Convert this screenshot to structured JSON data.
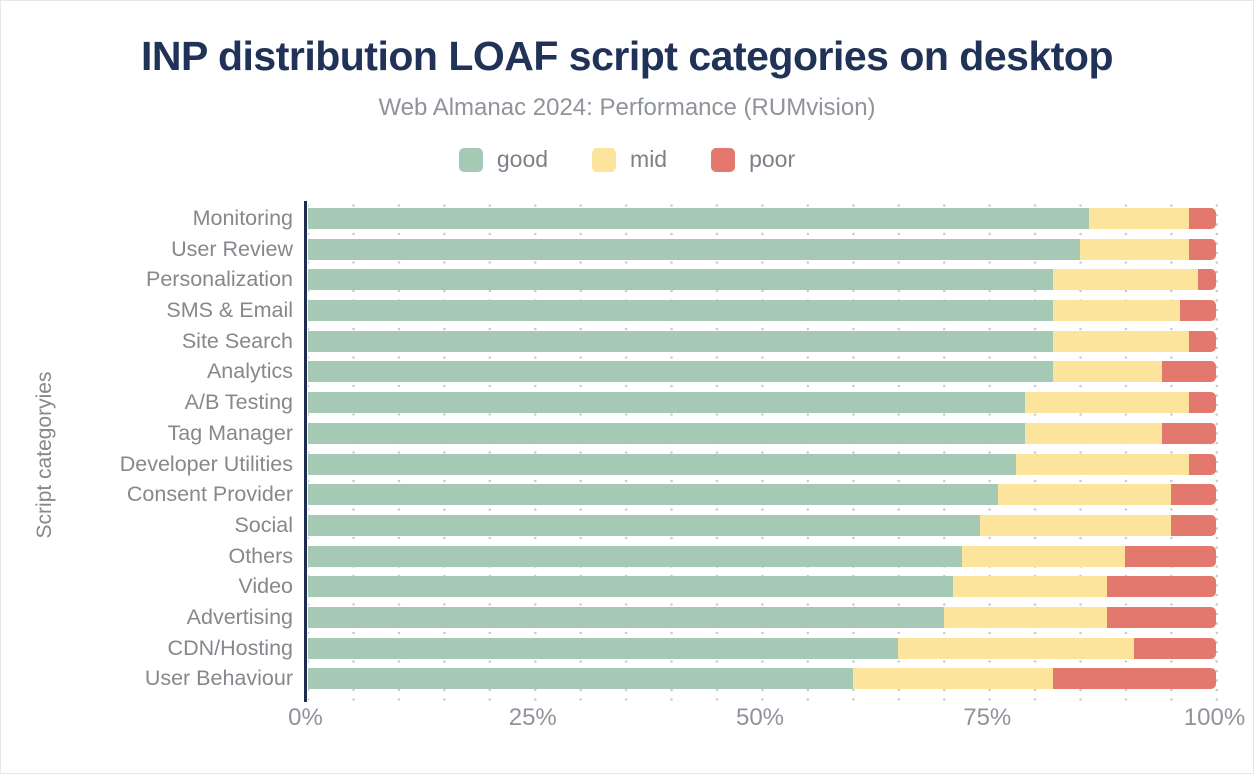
{
  "header": {
    "title": "INP distribution LOAF script categories on desktop",
    "subtitle": "Web Almanac 2024: Performance (RUMvision)"
  },
  "legend": {
    "items": [
      {
        "label": "good",
        "color": "#a6c9b6"
      },
      {
        "label": "mid",
        "color": "#fde49c"
      },
      {
        "label": "poor",
        "color": "#e2786e"
      }
    ]
  },
  "axes": {
    "y_title": "Script categoryies",
    "x_ticks": [
      {
        "label": "0%",
        "pos": 0
      },
      {
        "label": "25%",
        "pos": 25
      },
      {
        "label": "50%",
        "pos": 50
      },
      {
        "label": "75%",
        "pos": 75
      },
      {
        "label": "100%",
        "pos": 100
      }
    ]
  },
  "chart_data": {
    "type": "bar",
    "stacked": true,
    "orientation": "horizontal",
    "title": "INP distribution LOAF script categories on desktop",
    "subtitle": "Web Almanac 2024: Performance (RUMvision)",
    "ylabel": "Script categoryies",
    "xlim": [
      0,
      100
    ],
    "x_tick_labels": [
      "0%",
      "25%",
      "50%",
      "75%",
      "100%"
    ],
    "grid": "dotted vertical lines every 5%",
    "legend_position": "top",
    "categories": [
      "Monitoring",
      "User Review",
      "Personalization",
      "SMS & Email",
      "Site Search",
      "Analytics",
      "A/B Testing",
      "Tag Manager",
      "Developer Utilities",
      "Consent Provider",
      "Social",
      "Others",
      "Video",
      "Advertising",
      "CDN/Hosting",
      "User Behaviour"
    ],
    "series": [
      {
        "name": "good",
        "color": "#a6c9b6",
        "values": [
          86,
          85,
          82,
          82,
          82,
          82,
          79,
          79,
          78,
          76,
          74,
          72,
          71,
          70,
          65,
          60
        ]
      },
      {
        "name": "mid",
        "color": "#fde49c",
        "values": [
          11,
          12,
          16,
          14,
          15,
          12,
          18,
          15,
          19,
          19,
          21,
          18,
          17,
          18,
          26,
          22
        ]
      },
      {
        "name": "poor",
        "color": "#e2786e",
        "values": [
          3,
          3,
          2,
          4,
          3,
          6,
          3,
          6,
          3,
          5,
          5,
          10,
          12,
          12,
          9,
          18
        ]
      }
    ]
  }
}
